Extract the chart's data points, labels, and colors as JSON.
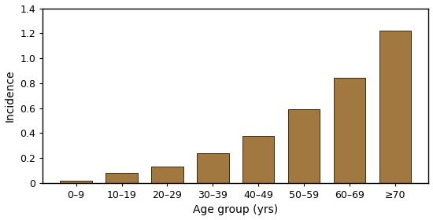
{
  "categories": [
    "0–9",
    "10–19",
    "20–29",
    "30–39",
    "40–49",
    "50–59",
    "60–69",
    "≥70"
  ],
  "values": [
    0.02,
    0.08,
    0.13,
    0.24,
    0.38,
    0.59,
    0.84,
    1.22
  ],
  "bar_color": "#a07840",
  "bar_edgecolor": "#3d2b0e",
  "xlabel": "Age group (yrs)",
  "ylabel": "Incidence",
  "ylim": [
    0,
    1.4
  ],
  "yticks": [
    0.0,
    0.2,
    0.4,
    0.6,
    0.8,
    1.0,
    1.2,
    1.4
  ],
  "yticklabels": [
    "0",
    "0.2",
    "0.4",
    "0.6",
    "0.8",
    "1.0",
    "1.2",
    "1.4"
  ],
  "background_color": "#ffffff",
  "xlabel_fontsize": 10,
  "ylabel_fontsize": 10,
  "tick_fontsize": 9
}
